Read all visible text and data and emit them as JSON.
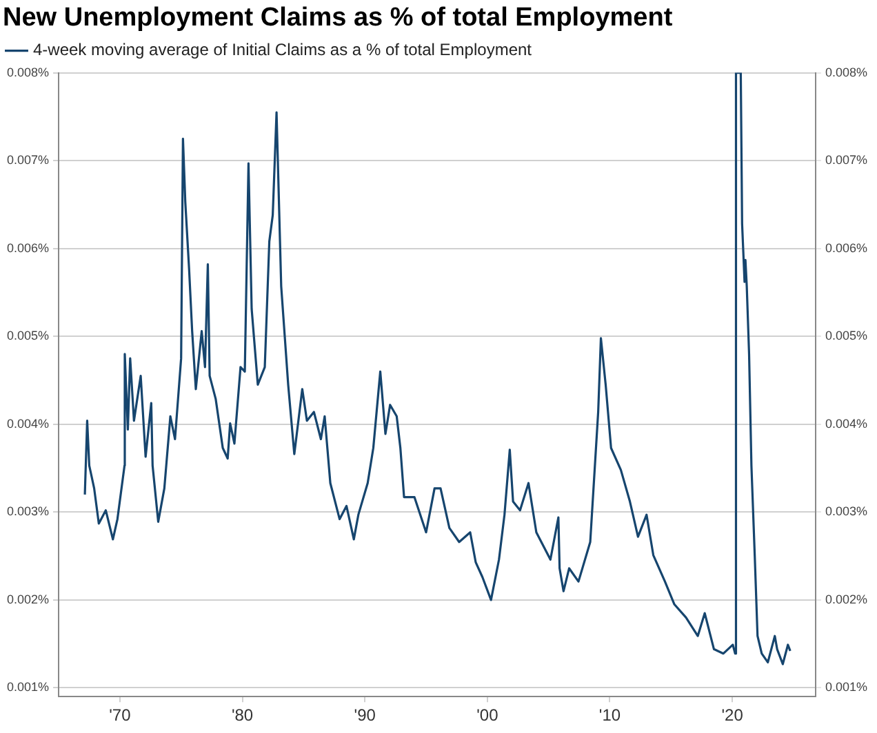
{
  "chart_data": {
    "type": "line",
    "title": "New Unemployment Claims as % of total Employment",
    "series": [
      {
        "name": "4-week moving average of Initial Claims as a % of total Employment",
        "color": "#16456e",
        "x": [
          1967.14,
          1967.33,
          1967.5,
          1967.9,
          1968.28,
          1968.85,
          1969.43,
          1969.8,
          1970.38,
          1970.4,
          1970.65,
          1970.84,
          1971.15,
          1971.7,
          1972.1,
          1972.56,
          1972.67,
          1973.13,
          1973.63,
          1974.12,
          1974.5,
          1975.0,
          1975.15,
          1975.34,
          1975.65,
          1975.9,
          1976.2,
          1976.68,
          1976.95,
          1977.18,
          1977.33,
          1977.82,
          1978.4,
          1978.8,
          1979.0,
          1979.35,
          1979.85,
          1980.2,
          1980.5,
          1980.76,
          1981.26,
          1981.83,
          1982.2,
          1982.48,
          1982.79,
          1983.17,
          1983.74,
          1984.24,
          1984.89,
          1985.27,
          1985.84,
          1986.41,
          1986.72,
          1987.18,
          1987.94,
          1988.5,
          1989.1,
          1989.47,
          1990.23,
          1990.69,
          1991.26,
          1991.68,
          1992.06,
          1992.6,
          1992.9,
          1993.2,
          1994.05,
          1995.0,
          1995.69,
          1996.18,
          1996.9,
          1997.7,
          1998.6,
          1999.05,
          1999.6,
          2000.3,
          2000.95,
          2001.4,
          2001.83,
          2002.1,
          2002.67,
          2003.36,
          2004.0,
          2005.15,
          2005.8,
          2005.9,
          2006.22,
          2006.68,
          2007.44,
          2008.4,
          2009.05,
          2009.27,
          2009.66,
          2010.1,
          2010.9,
          2011.64,
          2012.3,
          2013.0,
          2013.55,
          2014.5,
          2015.27,
          2016.22,
          2017.18,
          2017.75,
          2018.5,
          2019.27,
          2020.04,
          2020.23,
          2020.3,
          2020.69,
          2020.8,
          2021.0,
          2021.07,
          2021.18,
          2021.37,
          2021.56,
          2021.83,
          2022.06,
          2022.4,
          2022.9,
          2023.47,
          2023.66,
          2024.12,
          2024.54,
          2024.73
        ],
        "values": [
          0.0032,
          0.00404,
          0.00353,
          0.00327,
          0.00287,
          0.00302,
          0.00269,
          0.00292,
          0.00353,
          0.0048,
          0.00394,
          0.00475,
          0.00404,
          0.00455,
          0.00363,
          0.00424,
          0.00353,
          0.00289,
          0.00327,
          0.00409,
          0.00383,
          0.00475,
          0.00725,
          0.00653,
          0.00577,
          0.00506,
          0.0044,
          0.00506,
          0.00465,
          0.00582,
          0.00455,
          0.00429,
          0.00373,
          0.00361,
          0.00401,
          0.00378,
          0.00465,
          0.0046,
          0.00697,
          0.00531,
          0.00445,
          0.00465,
          0.00608,
          0.00638,
          0.00755,
          0.00557,
          0.00445,
          0.00366,
          0.0044,
          0.00404,
          0.00414,
          0.00383,
          0.00409,
          0.00333,
          0.00292,
          0.00307,
          0.00269,
          0.00297,
          0.00333,
          0.00373,
          0.0046,
          0.00389,
          0.00422,
          0.00409,
          0.00373,
          0.00317,
          0.00317,
          0.00277,
          0.00327,
          0.00327,
          0.00282,
          0.00266,
          0.00277,
          0.00243,
          0.00226,
          0.002,
          0.00246,
          0.00297,
          0.00371,
          0.00312,
          0.00302,
          0.00333,
          0.00277,
          0.00246,
          0.00294,
          0.00236,
          0.0021,
          0.00236,
          0.00221,
          0.00266,
          0.00414,
          0.00498,
          0.00445,
          0.00373,
          0.00348,
          0.00312,
          0.00272,
          0.00297,
          0.00251,
          0.00221,
          0.00195,
          0.0018,
          0.00159,
          0.00185,
          0.00144,
          0.00139,
          0.00149,
          0.00139,
          0.008,
          0.008,
          0.00628,
          0.00562,
          0.00587,
          0.00557,
          0.0048,
          0.00353,
          0.00251,
          0.00159,
          0.00139,
          0.00129,
          0.00159,
          0.00144,
          0.00127,
          0.00149,
          0.00142
        ]
      }
    ],
    "xlim": [
      1965,
      2026.8
    ],
    "xticks": [
      {
        "value": 1970,
        "label": "'70"
      },
      {
        "value": 1980,
        "label": "'80"
      },
      {
        "value": 1990,
        "label": "'90"
      },
      {
        "value": 2000,
        "label": "'00"
      },
      {
        "value": 2010,
        "label": "'10"
      },
      {
        "value": 2020,
        "label": "'20"
      }
    ],
    "ylim": [
      0.0009,
      0.008
    ],
    "yticks": [
      {
        "value": 0.001,
        "label": "0.001%"
      },
      {
        "value": 0.002,
        "label": "0.002%"
      },
      {
        "value": 0.003,
        "label": "0.003%"
      },
      {
        "value": 0.004,
        "label": "0.004%"
      },
      {
        "value": 0.005,
        "label": "0.005%"
      },
      {
        "value": 0.006,
        "label": "0.006%"
      },
      {
        "value": 0.007,
        "label": "0.007%"
      },
      {
        "value": 0.008,
        "label": "0.008%"
      }
    ],
    "y2lim": [
      0.0009,
      0.008
    ],
    "y2ticks": [
      {
        "value": 0.001,
        "label": "0.001%"
      },
      {
        "value": 0.002,
        "label": "0.002%"
      },
      {
        "value": 0.003,
        "label": "0.003%"
      },
      {
        "value": 0.004,
        "label": "0.004%"
      },
      {
        "value": 0.005,
        "label": "0.005%"
      },
      {
        "value": 0.006,
        "label": "0.006%"
      },
      {
        "value": 0.007,
        "label": "0.007%"
      },
      {
        "value": 0.008,
        "label": "0.008%"
      }
    ],
    "grid": "y",
    "legend": "top left",
    "marker": "none",
    "line_style": "solid"
  }
}
